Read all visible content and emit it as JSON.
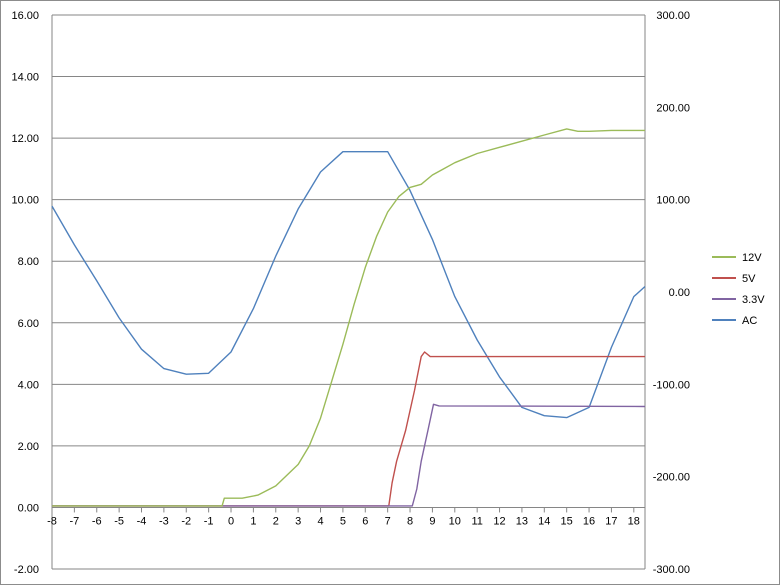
{
  "chart_data": {
    "type": "line",
    "title": "",
    "xlabel": "",
    "ylabel": "",
    "xlim": [
      -8,
      18.5
    ],
    "ylim": [
      -2,
      16
    ],
    "y2lim": [
      -300,
      300
    ],
    "grid": true,
    "legend_position": "right",
    "x_ticks": [
      "-8",
      "-7",
      "-6",
      "-5",
      "-4",
      "-3",
      "-2",
      "-1",
      "0",
      "1",
      "2",
      "3",
      "4",
      "5",
      "6",
      "7",
      "8",
      "9",
      "10",
      "11",
      "12",
      "13",
      "14",
      "15",
      "16",
      "17",
      "18"
    ],
    "y_ticks": [
      "-2.00",
      "0.00",
      "2.00",
      "4.00",
      "6.00",
      "8.00",
      "10.00",
      "12.00",
      "14.00",
      "16.00"
    ],
    "y2_ticks": [
      "-300.00",
      "-200.00",
      "-100.00",
      "0.00",
      "100.00",
      "200.00",
      "300.00"
    ],
    "series": [
      {
        "name": "12V",
        "color": "#9bbb59",
        "axis": "left",
        "points": [
          [
            -8,
            0.05
          ],
          [
            -0.4,
            0.05
          ],
          [
            -0.3,
            0.3
          ],
          [
            0.5,
            0.3
          ],
          [
            1.2,
            0.4
          ],
          [
            2,
            0.7
          ],
          [
            3,
            1.4
          ],
          [
            3.5,
            2.0
          ],
          [
            4,
            2.9
          ],
          [
            4.5,
            4.1
          ],
          [
            5,
            5.3
          ],
          [
            5.5,
            6.6
          ],
          [
            6,
            7.8
          ],
          [
            6.5,
            8.8
          ],
          [
            7,
            9.6
          ],
          [
            7.5,
            10.1
          ],
          [
            8,
            10.4
          ],
          [
            8.5,
            10.5
          ],
          [
            9,
            10.8
          ],
          [
            9.5,
            11.0
          ],
          [
            10,
            11.2
          ],
          [
            11,
            11.5
          ],
          [
            12,
            11.7
          ],
          [
            13,
            11.9
          ],
          [
            14,
            12.1
          ],
          [
            15,
            12.3
          ],
          [
            15.5,
            12.22
          ],
          [
            16,
            12.22
          ],
          [
            17,
            12.25
          ],
          [
            18.5,
            12.25
          ]
        ]
      },
      {
        "name": "5V",
        "color": "#c0504d",
        "axis": "left",
        "points": [
          [
            -8,
            0.05
          ],
          [
            7.05,
            0.05
          ],
          [
            7.2,
            0.8
          ],
          [
            7.4,
            1.5
          ],
          [
            7.8,
            2.5
          ],
          [
            8.2,
            3.8
          ],
          [
            8.5,
            4.9
          ],
          [
            8.65,
            5.05
          ],
          [
            8.9,
            4.9
          ],
          [
            18.5,
            4.9
          ]
        ]
      },
      {
        "name": "3.3V",
        "color": "#8064a2",
        "axis": "left",
        "points": [
          [
            -8,
            0.05
          ],
          [
            8.1,
            0.05
          ],
          [
            8.3,
            0.6
          ],
          [
            8.5,
            1.5
          ],
          [
            8.8,
            2.5
          ],
          [
            9.05,
            3.35
          ],
          [
            9.3,
            3.3
          ],
          [
            18.5,
            3.28
          ]
        ]
      },
      {
        "name": "AC",
        "color": "#4f81bd",
        "axis": "right",
        "points": [
          [
            -8,
            93
          ],
          [
            -7,
            51
          ],
          [
            -6,
            12
          ],
          [
            -5,
            -28
          ],
          [
            -4,
            -62
          ],
          [
            -3,
            -83
          ],
          [
            -2,
            -89
          ],
          [
            -1,
            -88
          ],
          [
            0,
            -65
          ],
          [
            1,
            -18
          ],
          [
            2,
            39
          ],
          [
            3,
            90
          ],
          [
            4,
            130
          ],
          [
            5,
            152
          ],
          [
            6,
            152
          ],
          [
            7,
            152
          ],
          [
            8,
            110
          ],
          [
            9,
            57
          ],
          [
            10,
            -5
          ],
          [
            11,
            -52
          ],
          [
            12,
            -92
          ],
          [
            13,
            -125
          ],
          [
            14,
            -134
          ],
          [
            15,
            -136
          ],
          [
            16,
            -125
          ],
          [
            17,
            -60
          ],
          [
            18,
            -5
          ],
          [
            18.5,
            6
          ]
        ]
      }
    ]
  }
}
